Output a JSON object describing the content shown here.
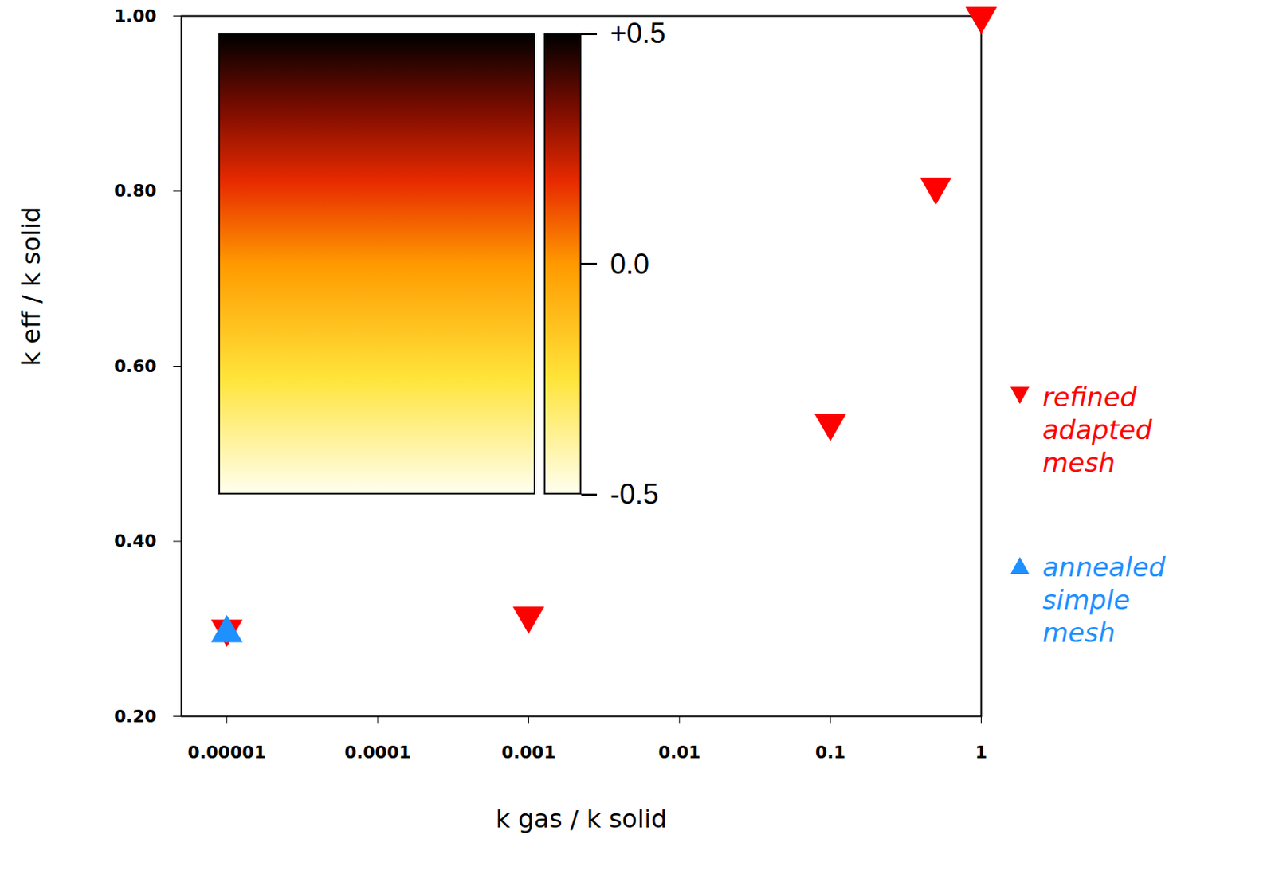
{
  "chart_data": {
    "type": "scatter",
    "x_label": "k gas / k solid",
    "y_label": "k eff / k solid",
    "log": "x",
    "xlim": [
      5e-06,
      1
    ],
    "ylim": [
      0.2,
      1.0
    ],
    "xticks": [
      {
        "value": 1e-05,
        "label": "0.00001"
      },
      0.0001,
      0.001,
      0.01,
      0.1,
      1
    ],
    "yticks": [
      {
        "value": 0.2,
        "label": "0.20"
      },
      {
        "value": 0.4,
        "label": "0.40"
      },
      {
        "value": 0.6,
        "label": "0.60"
      },
      {
        "value": 0.8,
        "label": "0.80"
      },
      {
        "value": 1.0,
        "label": "1.00"
      }
    ],
    "legend": "right",
    "series": [
      {
        "name": "refined adapted mesh",
        "color": "#ff0000",
        "marker": "triangle-down",
        "x": [
          1e-05,
          0.001,
          0.1,
          0.5,
          1
        ],
        "values": [
          0.3,
          0.315,
          0.535,
          0.805,
          1.0
        ]
      },
      {
        "name": "annealed simple mesh",
        "color": "#1e90ff",
        "marker": "triangle-up",
        "x": [
          1e-05
        ],
        "values": [
          0.295
        ]
      }
    ],
    "colorbar": {
      "range": [
        -0.5,
        0.5
      ],
      "ticks": [
        {
          "value": 0.5,
          "label": "+0.5"
        },
        {
          "value": 0,
          "label": "0.0"
        },
        {
          "value": -0.5,
          "label": "-0.5"
        }
      ]
    }
  }
}
